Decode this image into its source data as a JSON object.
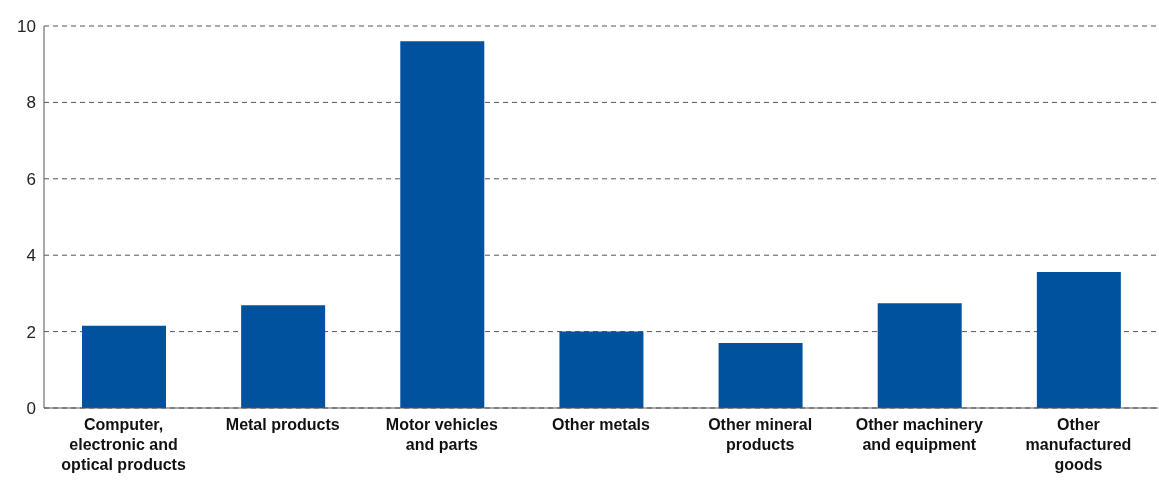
{
  "chart_data": {
    "type": "bar",
    "categories": [
      "Computer, electronic and optical products",
      "Metal products",
      "Motor vehicles and parts",
      "Other metals",
      "Other  mineral products",
      "Other machinery and equipment",
      "Other manufactured goods"
    ],
    "values": [
      2.15,
      2.69,
      9.6,
      2.0,
      1.7,
      2.74,
      3.56
    ],
    "color": "#00529f",
    "ylim": [
      0,
      10
    ],
    "yticks": [
      0,
      2,
      4,
      6,
      8,
      10
    ],
    "grid": "y"
  }
}
